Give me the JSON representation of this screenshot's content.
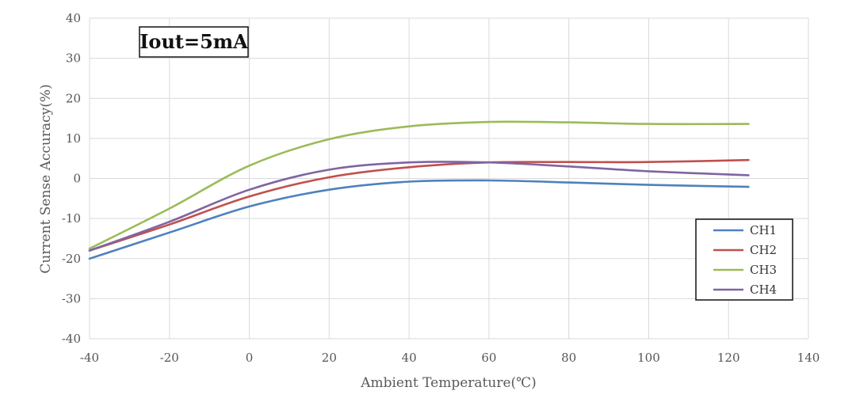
{
  "chart_data": {
    "type": "line",
    "title": "",
    "annotation": "Iout=5mA",
    "xlabel": "Ambient Temperature(℃)",
    "ylabel": "Current Sense Accuracy(%)",
    "xlim": [
      -40,
      140
    ],
    "ylim": [
      -40,
      40
    ],
    "xticks": [
      -40,
      -20,
      0,
      20,
      40,
      60,
      80,
      100,
      120,
      140
    ],
    "yticks": [
      40,
      30,
      20,
      10,
      0,
      -10,
      -20,
      -30,
      -40
    ],
    "xtick_labels": [
      "-40",
      "-20",
      "0",
      "20",
      "40",
      "60",
      "80",
      "100",
      "120",
      "140"
    ],
    "ytick_labels": [
      "40",
      "30",
      "20",
      "10",
      "0",
      "-10",
      "-20",
      "-30",
      "-40"
    ],
    "grid": true,
    "legend_position": "bottom-right",
    "x": [
      -40,
      -20,
      0,
      20,
      40,
      60,
      80,
      100,
      125
    ],
    "series": [
      {
        "name": "CH1",
        "color": "#4e81bd",
        "values": [
          -20,
          -13.5,
          -7,
          -2.8,
          -0.8,
          -0.5,
          -1,
          -1.6,
          -2.1
        ]
      },
      {
        "name": "CH2",
        "color": "#c0504d",
        "values": [
          -18,
          -11.5,
          -4.5,
          0.3,
          2.8,
          4,
          4.1,
          4.1,
          4.6
        ]
      },
      {
        "name": "CH3",
        "color": "#9bbb59",
        "values": [
          -17.5,
          -7.5,
          3.2,
          9.8,
          13,
          14.1,
          14,
          13.6,
          13.6
        ]
      },
      {
        "name": "CH4",
        "color": "#8064a2",
        "values": [
          -18,
          -10.8,
          -2.8,
          2.2,
          4,
          4,
          3,
          1.8,
          0.8
        ]
      }
    ]
  }
}
